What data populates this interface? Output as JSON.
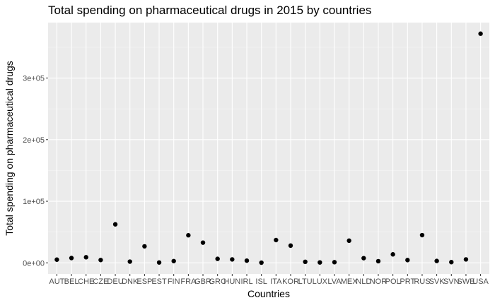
{
  "chart_data": {
    "type": "scatter",
    "title": "Total spending on pharmaceutical drugs in 2015 by countries",
    "xlabel": "Countries",
    "ylabel": "Total spending on pharmaceutical drugs",
    "categories": [
      "AUT",
      "BEL",
      "CHE",
      "CZE",
      "DEU",
      "DNK",
      "ESP",
      "EST",
      "FIN",
      "FRA",
      "GBR",
      "GRC",
      "HUN",
      "IRL",
      "ISL",
      "ITA",
      "KOR",
      "LTU",
      "LUX",
      "LVA",
      "MEX",
      "NLD",
      "NOR",
      "POL",
      "PRT",
      "RUS",
      "SVK",
      "SVN",
      "SWE",
      "USA"
    ],
    "series": [
      {
        "values": [
          5200,
          7800,
          9100,
          4600,
          62500,
          2000,
          26800,
          600,
          2900,
          44800,
          32800,
          6500,
          5600,
          3600,
          300,
          37000,
          28000,
          1700,
          700,
          1100,
          36000,
          7600,
          2700,
          13800,
          4500,
          45000,
          3100,
          1200,
          5600,
          372000
        ]
      }
    ],
    "ylim": [
      -18000,
      390000
    ],
    "yticks": [
      0,
      100000,
      200000,
      300000
    ],
    "ytick_labels": [
      "0e+00",
      "1e+05",
      "2e+05",
      "3e+05"
    ],
    "grid": true,
    "legend": "none",
    "colors": {
      "panel": "#ebebeb",
      "grid_major": "#ffffff",
      "grid_minor": "#f5f5f5",
      "point": "#000000",
      "tick": "#333333"
    }
  }
}
